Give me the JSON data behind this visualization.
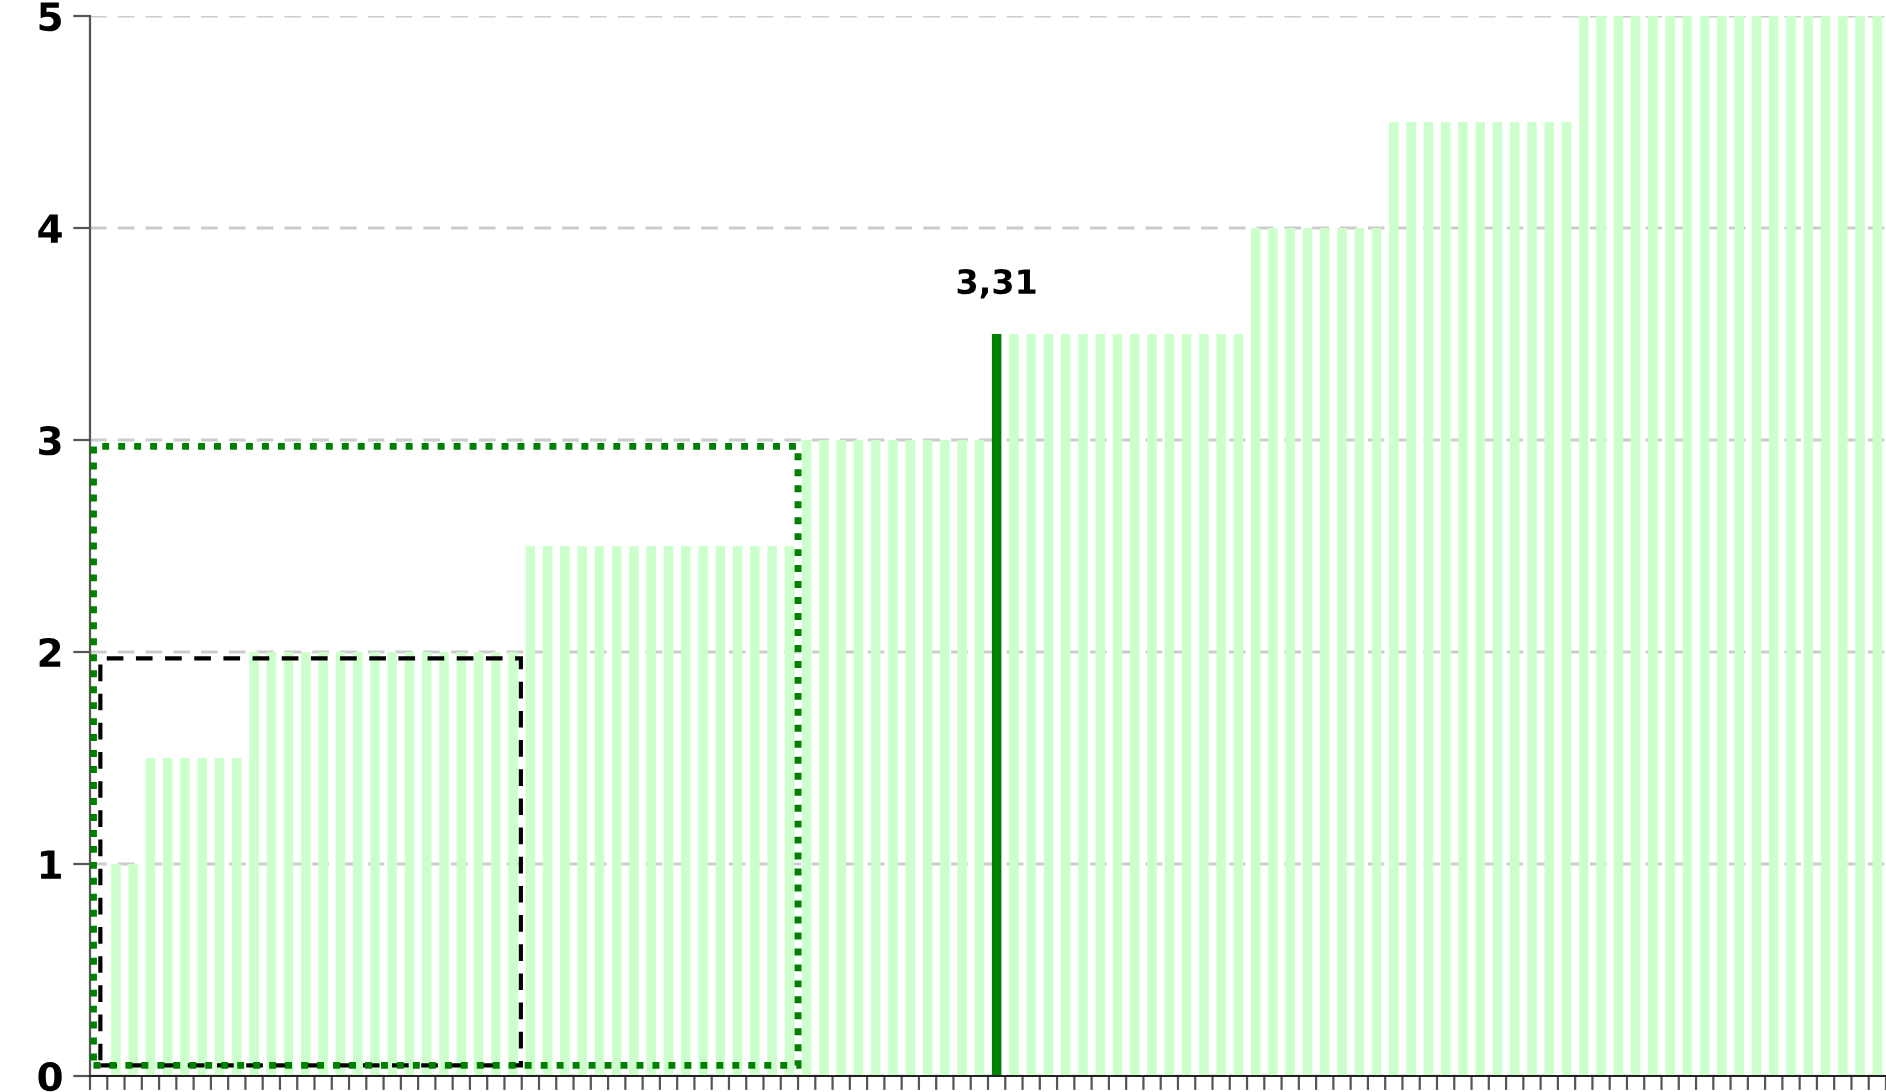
{
  "chart_data": {
    "type": "bar",
    "categories": [
      null,
      null,
      null,
      null,
      null,
      null,
      null,
      null,
      null,
      null,
      null,
      null,
      null,
      null,
      null,
      null,
      null,
      null,
      null,
      null,
      null,
      null,
      null,
      null,
      null,
      null,
      null,
      null,
      null,
      null,
      null,
      null,
      null,
      null,
      null,
      null,
      null,
      null,
      null,
      null,
      null,
      null,
      null,
      null,
      null,
      null,
      null,
      null,
      null,
      null,
      null,
      null,
      null,
      null,
      null,
      null,
      null,
      null,
      null,
      null,
      null,
      null,
      null,
      null,
      null,
      null,
      null,
      null,
      null,
      null,
      null,
      null,
      null,
      null,
      null,
      null,
      null,
      null,
      null,
      null,
      null,
      null,
      null,
      null,
      null,
      null,
      null,
      null,
      null,
      null,
      null,
      null,
      null,
      null,
      null,
      null,
      null,
      null,
      null,
      null,
      null,
      null,
      null,
      null
    ],
    "values": [
      null,
      1,
      1,
      1.5,
      1.5,
      1.5,
      1.5,
      1.5,
      1.5,
      2,
      2,
      2,
      2,
      2,
      2,
      2,
      2,
      2,
      2,
      2,
      2,
      2,
      2,
      2,
      2,
      2.5,
      2.5,
      2.5,
      2.5,
      2.5,
      2.5,
      2.5,
      2.5,
      2.5,
      2.5,
      2.5,
      2.5,
      2.5,
      2.5,
      2.5,
      2.5,
      3,
      3,
      3,
      3,
      3,
      3,
      3,
      3,
      3,
      3,
      3,
      3.5,
      3.5,
      3.5,
      3.5,
      3.5,
      3.5,
      3.5,
      3.5,
      3.5,
      3.5,
      3.5,
      3.5,
      3.5,
      3.5,
      3.5,
      4,
      4,
      4,
      4,
      4,
      4,
      4,
      4,
      4.5,
      4.5,
      4.5,
      4.5,
      4.5,
      4.5,
      4.5,
      4.5,
      4.5,
      4.5,
      4.5,
      5,
      5,
      5,
      5,
      5,
      5,
      5,
      5,
      5,
      5,
      5,
      5,
      5,
      5,
      5,
      5,
      5,
      5
    ],
    "colors": [
      "#ccffcc",
      "#ccffcc",
      "#ccffcc",
      "#ccffcc",
      "#ccffcc",
      "#ccffcc",
      "#ccffcc",
      "#ccffcc",
      "#ccffcc",
      "#ccffcc",
      "#ccffcc",
      "#ccffcc",
      "#ccffcc",
      "#ccffcc",
      "#ccffcc",
      "#ccffcc",
      "#ccffcc",
      "#ccffcc",
      "#ccffcc",
      "#ccffcc",
      "#ccffcc",
      "#ccffcc",
      "#ccffcc",
      "#ccffcc",
      "#ccffcc",
      "#ccffcc",
      "#ccffcc",
      "#ccffcc",
      "#ccffcc",
      "#ccffcc",
      "#ccffcc",
      "#ccffcc",
      "#ccffcc",
      "#ccffcc",
      "#ccffcc",
      "#ccffcc",
      "#ccffcc",
      "#ccffcc",
      "#ccffcc",
      "#ccffcc",
      "#ccffcc",
      "#ccffcc",
      "#ccffcc",
      "#ccffcc",
      "#ccffcc",
      "#ccffcc",
      "#ccffcc",
      "#ccffcc",
      "#ccffcc",
      "#ccffcc",
      "#ccffcc",
      "#ccffcc",
      "#008000",
      "#ccffcc",
      "#ccffcc",
      "#ccffcc",
      "#ccffcc",
      "#ccffcc",
      "#ccffcc",
      "#ccffcc",
      "#ccffcc",
      "#ccffcc",
      "#ccffcc",
      "#ccffcc",
      "#ccffcc",
      "#ccffcc",
      "#ccffcc",
      "#ccffcc",
      "#ccffcc",
      "#ccffcc",
      "#ccffcc",
      "#ccffcc",
      "#ccffcc",
      "#ccffcc",
      "#ccffcc",
      "#ccffcc",
      "#ccffcc",
      "#ccffcc",
      "#ccffcc",
      "#ccffcc",
      "#ccffcc",
      "#ccffcc",
      "#ccffcc",
      "#ccffcc",
      "#ccffcc",
      "#ccffcc",
      "#ccffcc",
      "#ccffcc",
      "#ccffcc",
      "#ccffcc",
      "#ccffcc",
      "#ccffcc",
      "#ccffcc",
      "#ccffcc",
      "#ccffcc",
      "#ccffcc",
      "#ccffcc",
      "#ccffcc",
      "#ccffcc",
      "#ccffcc",
      "#ccffcc",
      "#ccffcc",
      "#ccffcc",
      "#ccffcc"
    ],
    "ylim": [
      0,
      5
    ],
    "yticks": [
      0,
      1,
      2,
      3,
      4,
      5
    ],
    "grid": "y",
    "annotations": [
      "3,31"
    ]
  }
}
